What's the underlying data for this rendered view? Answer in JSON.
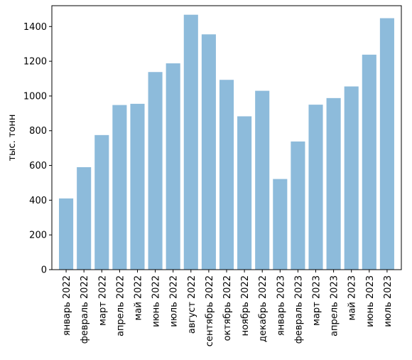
{
  "chart_data": {
    "type": "bar",
    "title": "",
    "xlabel": "",
    "ylabel": "тыс. тонн",
    "ylim": [
      0,
      1520
    ],
    "yticks": [
      0,
      200,
      400,
      600,
      800,
      1000,
      1200,
      1400
    ],
    "grid": false,
    "bar_color": "#8dbbdb",
    "categories": [
      "январь 2022",
      "февраль 2022",
      "март 2022",
      "апрель 2022",
      "май 2022",
      "июнь 2022",
      "июль 2022",
      "август 2022",
      "сентябрь 2022",
      "октябрь 2022",
      "ноябрь 2022",
      "декабрь 2022",
      "январь 2023",
      "февраль 2023",
      "март 2023",
      "апрель 2023",
      "май 2023",
      "июнь 2023",
      "июль 2023"
    ],
    "values": [
      410,
      590,
      775,
      948,
      955,
      1138,
      1188,
      1468,
      1355,
      1093,
      883,
      1030,
      522,
      738,
      950,
      988,
      1055,
      1238,
      1448
    ]
  }
}
